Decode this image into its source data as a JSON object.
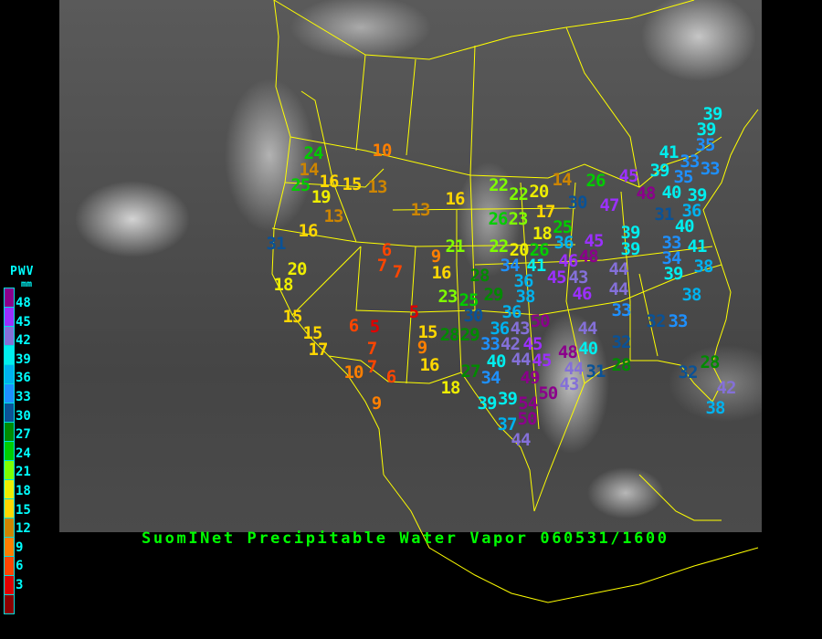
{
  "title": "SuomINet Precipitable Water Vapor 060531/1600",
  "legend": {
    "title": "PWV",
    "unit": "mm",
    "labels": [
      "48",
      "45",
      "42",
      "39",
      "36",
      "33",
      "30",
      "27",
      "24",
      "21",
      "18",
      "15",
      "12",
      "9",
      "6",
      "3"
    ],
    "colors_top_to_bottom": [
      "#8b008b",
      "#9b30ff",
      "#8470d8",
      "#00eeee",
      "#00b2ee",
      "#1e90ff",
      "#0a5296",
      "#008b00",
      "#00cd00",
      "#7fff00",
      "#eeee00",
      "#ffd700",
      "#cd8500",
      "#ff7f00",
      "#ff4500",
      "#e00000",
      "#8b0000"
    ]
  },
  "map": {
    "border_color": "#ffff00",
    "background": "grayscale satellite water vapor imagery"
  },
  "stations": [
    {
      "value": 24
    },
    {
      "value": 14
    },
    {
      "value": 25
    },
    {
      "value": 16
    },
    {
      "value": 15
    },
    {
      "value": 13
    },
    {
      "value": 19
    },
    {
      "value": 10
    },
    {
      "value": 13
    },
    {
      "value": 13
    },
    {
      "value": 16
    },
    {
      "value": 16
    },
    {
      "value": 31
    },
    {
      "value": 21
    },
    {
      "value": 6
    },
    {
      "value": 7
    },
    {
      "value": 7
    },
    {
      "value": 9
    },
    {
      "value": 16
    },
    {
      "value": 20
    },
    {
      "value": 18
    },
    {
      "value": 15
    },
    {
      "value": 15
    },
    {
      "value": 17
    },
    {
      "value": 6
    },
    {
      "value": 5
    },
    {
      "value": 5
    },
    {
      "value": 7
    },
    {
      "value": 7
    },
    {
      "value": 10
    },
    {
      "value": 6
    },
    {
      "value": 9
    },
    {
      "value": 15
    },
    {
      "value": 9
    },
    {
      "value": 16
    },
    {
      "value": 18
    },
    {
      "value": 23
    },
    {
      "value": 27
    },
    {
      "value": 22
    },
    {
      "value": 22
    },
    {
      "value": 20
    },
    {
      "value": 14
    },
    {
      "value": 26
    },
    {
      "value": 45
    },
    {
      "value": 30
    },
    {
      "value": 47
    },
    {
      "value": 26
    },
    {
      "value": 23
    },
    {
      "value": 17
    },
    {
      "value": 25
    },
    {
      "value": 18
    },
    {
      "value": 36
    },
    {
      "value": 22
    },
    {
      "value": 20
    },
    {
      "value": 26
    },
    {
      "value": 45
    },
    {
      "value": 48
    },
    {
      "value": 39
    },
    {
      "value": 28
    },
    {
      "value": 34
    },
    {
      "value": 41
    },
    {
      "value": 45
    },
    {
      "value": 46
    },
    {
      "value": 43
    },
    {
      "value": 44
    },
    {
      "value": 36
    },
    {
      "value": 38
    },
    {
      "value": 46
    },
    {
      "value": 44
    },
    {
      "value": 25
    },
    {
      "value": 29
    },
    {
      "value": 30
    },
    {
      "value": 36
    },
    {
      "value": 50
    },
    {
      "value": 43
    },
    {
      "value": 36
    },
    {
      "value": 45
    },
    {
      "value": 44
    },
    {
      "value": 33
    },
    {
      "value": 28
    },
    {
      "value": 29
    },
    {
      "value": 33
    },
    {
      "value": 42
    },
    {
      "value": 40
    },
    {
      "value": 44
    },
    {
      "value": 45
    },
    {
      "value": 48
    },
    {
      "value": 40
    },
    {
      "value": 32
    },
    {
      "value": 44
    },
    {
      "value": 43
    },
    {
      "value": 31
    },
    {
      "value": 28
    },
    {
      "value": 34
    },
    {
      "value": 49
    },
    {
      "value": 50
    },
    {
      "value": 39
    },
    {
      "value": 39
    },
    {
      "value": 54
    },
    {
      "value": 37
    },
    {
      "value": 50
    },
    {
      "value": 44
    },
    {
      "value": 39
    },
    {
      "value": 39
    },
    {
      "value": 35
    },
    {
      "value": 41
    },
    {
      "value": 33
    },
    {
      "value": 39
    },
    {
      "value": 35
    },
    {
      "value": 33
    },
    {
      "value": 40
    },
    {
      "value": 48
    },
    {
      "value": 39
    },
    {
      "value": 31
    },
    {
      "value": 36
    },
    {
      "value": 40
    },
    {
      "value": 39
    },
    {
      "value": 33
    },
    {
      "value": 34
    },
    {
      "value": 41
    },
    {
      "value": 39
    },
    {
      "value": 38
    },
    {
      "value": 32
    },
    {
      "value": 33
    },
    {
      "value": 38
    },
    {
      "value": 28
    },
    {
      "value": 32
    },
    {
      "value": 42
    },
    {
      "value": 38
    }
  ]
}
